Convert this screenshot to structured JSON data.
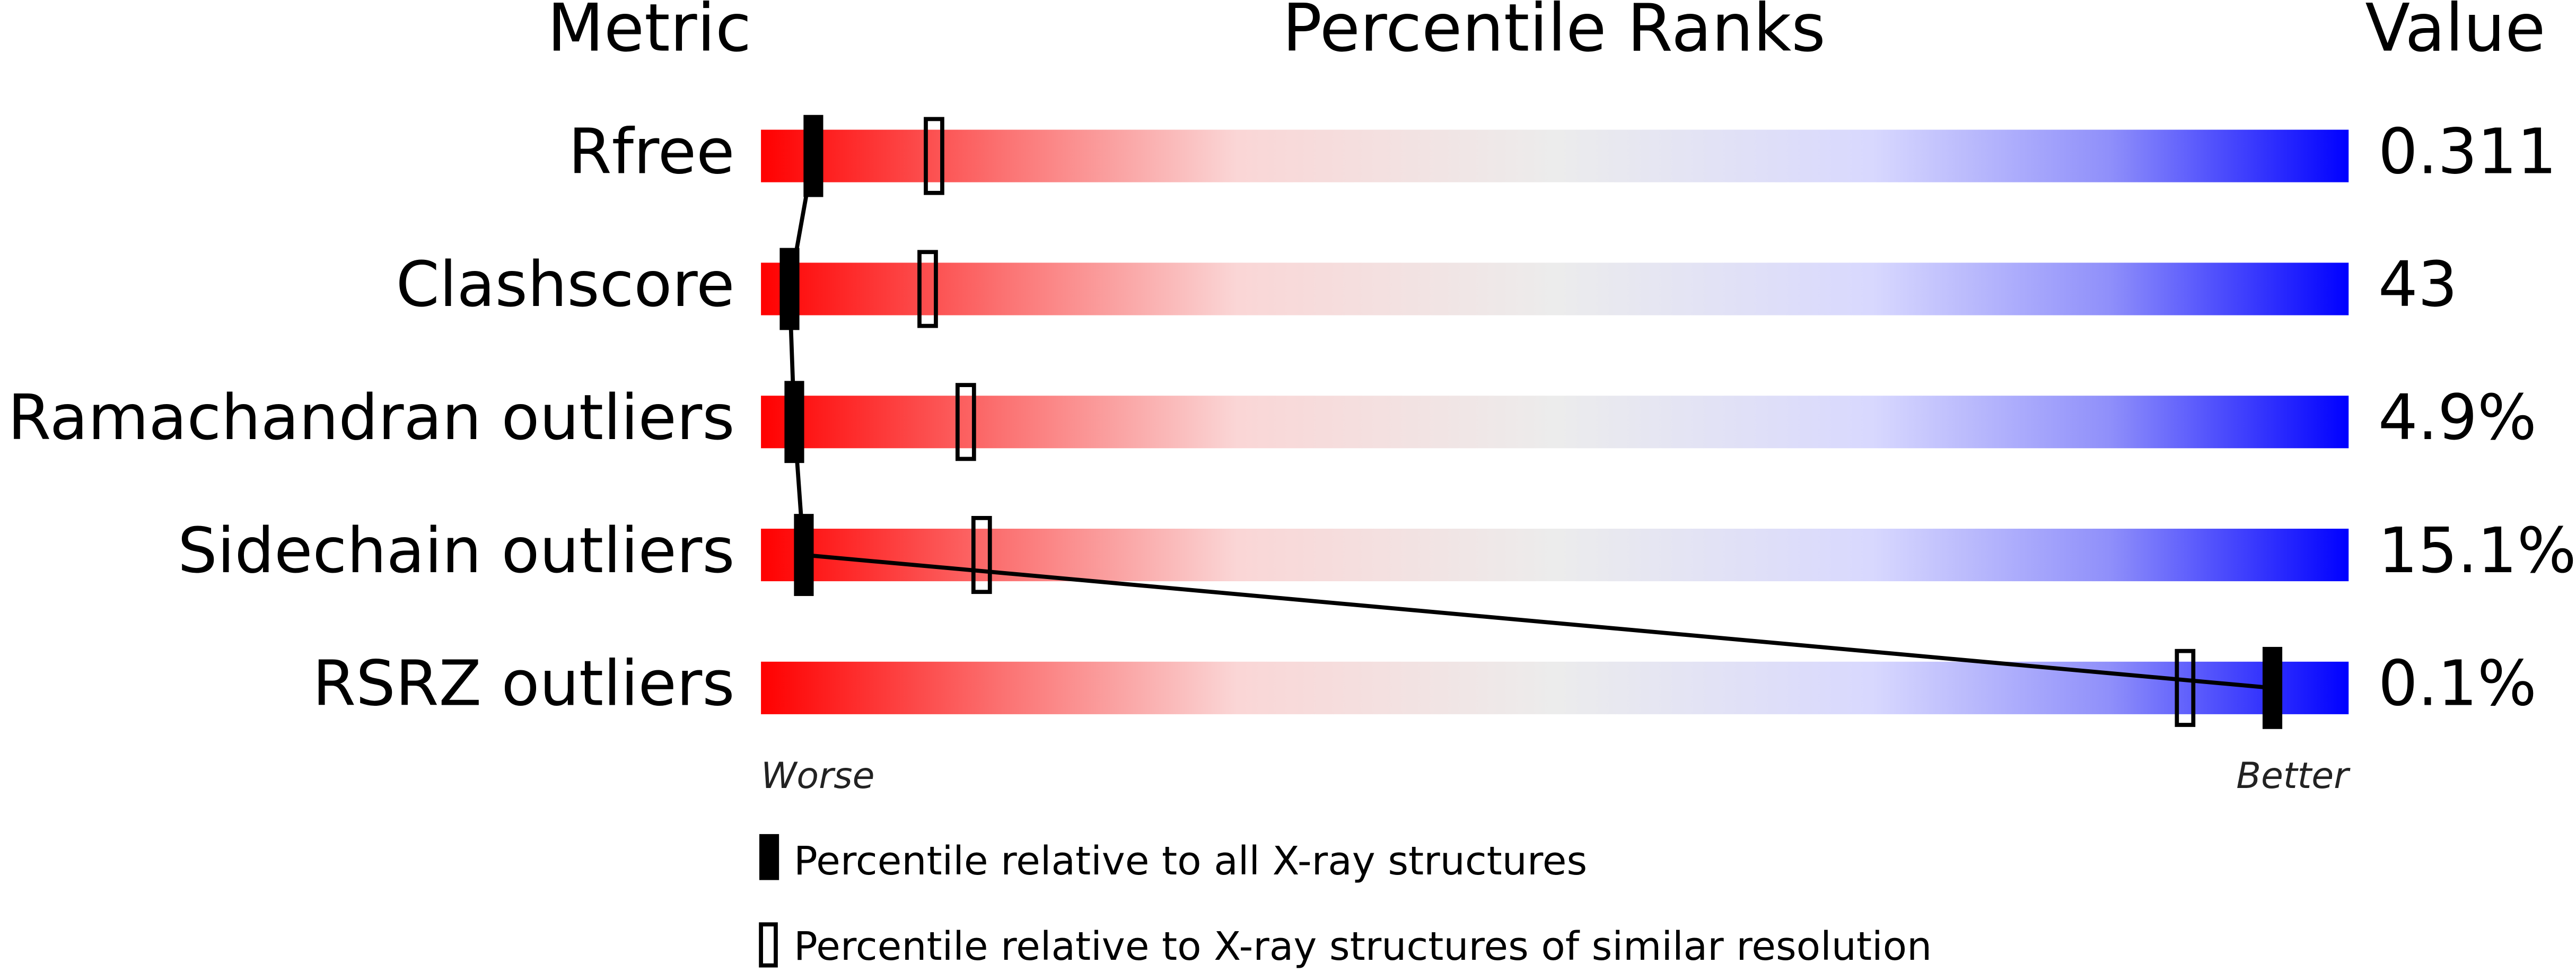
{
  "chart_data": {
    "type": "percentile-slider",
    "column_headers": [
      "Metric",
      "Percentile Ranks",
      "Value"
    ],
    "categories": [
      "Rfree",
      "Clashscore",
      "Ramachandran outliers",
      "Sidechain outliers",
      "RSRZ outliers"
    ],
    "value_column": [
      "0.311",
      "43",
      "4.9%",
      "15.1%",
      "0.1%"
    ],
    "xlim": [
      0,
      100
    ],
    "series": [
      {
        "name": "Percentile relative to all X-ray structures",
        "color": "#000000",
        "values": [
          3.3,
          1.8,
          2.1,
          2.7,
          95.2
        ]
      },
      {
        "name": "Percentile relative to X-ray structures of similar resolution",
        "color": "#000000",
        "values": [
          10.9,
          10.5,
          12.9,
          13.9,
          89.7
        ]
      }
    ],
    "annotations": [
      "Worse",
      "Better"
    ]
  }
}
